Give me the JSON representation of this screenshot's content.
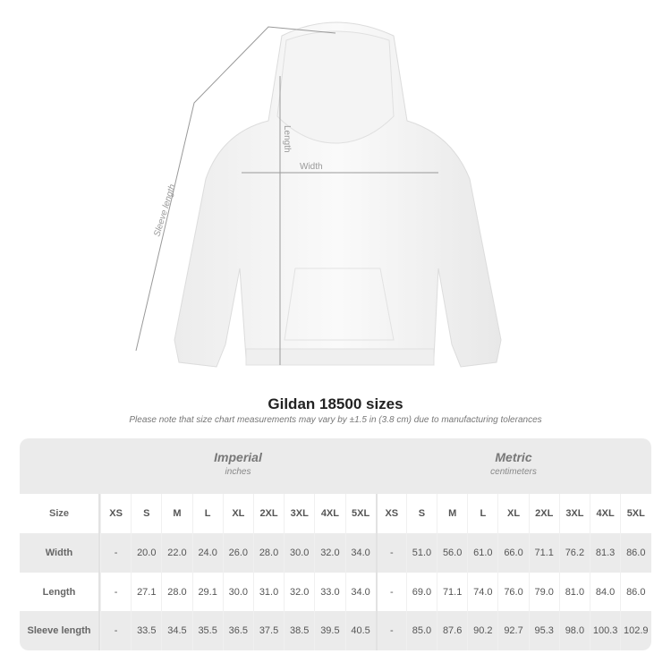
{
  "diagram": {
    "labels": {
      "length": "Length",
      "width": "Width",
      "sleeve": "Sleeve length"
    }
  },
  "title": "Gildan 18500 sizes",
  "note": "Please note that size chart measurements may vary by ±1.5 in (3.8 cm) due to manufacturing tolerances",
  "table": {
    "imperial": {
      "title": "Imperial",
      "unit": "inches"
    },
    "metric": {
      "title": "Metric",
      "unit": "centimeters"
    },
    "size_label": "Size",
    "sizes": [
      "XS",
      "S",
      "M",
      "L",
      "XL",
      "2XL",
      "3XL",
      "4XL",
      "5XL"
    ],
    "rows": [
      {
        "label": "Width",
        "imperial": [
          "-",
          "20.0",
          "22.0",
          "24.0",
          "26.0",
          "28.0",
          "30.0",
          "32.0",
          "34.0"
        ],
        "metric": [
          "-",
          "51.0",
          "56.0",
          "61.0",
          "66.0",
          "71.1",
          "76.2",
          "81.3",
          "86.0"
        ]
      },
      {
        "label": "Length",
        "imperial": [
          "-",
          "27.1",
          "28.0",
          "29.1",
          "30.0",
          "31.0",
          "32.0",
          "33.0",
          "34.0"
        ],
        "metric": [
          "-",
          "69.0",
          "71.1",
          "74.0",
          "76.0",
          "79.0",
          "81.0",
          "84.0",
          "86.0"
        ]
      },
      {
        "label": "Sleeve length",
        "imperial": [
          "-",
          "33.5",
          "34.5",
          "35.5",
          "36.5",
          "37.5",
          "38.5",
          "39.5",
          "40.5"
        ],
        "metric": [
          "-",
          "85.0",
          "87.6",
          "90.2",
          "92.7",
          "95.3",
          "98.0",
          "100.3",
          "102.9"
        ]
      }
    ]
  }
}
